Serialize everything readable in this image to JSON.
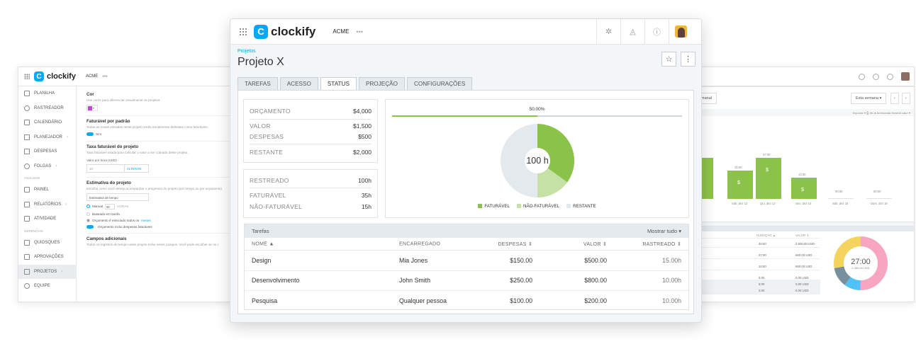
{
  "left_window": {
    "logo": "clockify",
    "workspace": "ACME",
    "ellipsis": "•••",
    "sidebar": [
      {
        "label": "PLANILHA"
      },
      {
        "label": "RASTREADOR"
      },
      {
        "label": "CALENDÁRIO"
      },
      {
        "label": "PLANEJADOR",
        "chevron": "›"
      },
      {
        "label": "DESPESAS"
      },
      {
        "label": "FOLGAS",
        "chevron": "›"
      }
    ],
    "section_analyze": "ANALISAR",
    "sidebar2": [
      {
        "label": "PAINEL"
      },
      {
        "label": "RELATÓRIOS",
        "chevron": "›"
      },
      {
        "label": "ATIVIDADE"
      }
    ],
    "section_manage": "GERENCIAR",
    "sidebar3": [
      {
        "label": "QUIOSQUES"
      },
      {
        "label": "APROVAÇÕES"
      },
      {
        "label": "PROJETOS",
        "chevron": "›"
      },
      {
        "label": "EQUIPE"
      }
    ],
    "color_title": "Cor",
    "color_desc": "Use cores para diferenciar visualmente os projetos.",
    "color_caret": "▾",
    "billable_title": "Faturável por padrão",
    "billable_desc": "Todas as novas entradas neste projeto serão inicialmente definidas como faturáveis.",
    "billable_toggle": "Sim",
    "rate_title": "Taxa faturável do projeto",
    "rate_desc": "Taxa faturável usada para calcular o valor a ser cobrado deste projeto.",
    "rate_label": "Valor por hora (USD)",
    "rate_value": "10",
    "rate_button": "ALTERAR",
    "estimate_title": "Estimativa do projeto",
    "estimate_desc": "Escolha como você deseja acompanhar o progresso do projeto (por tempo ou por orçamento)",
    "estimate_select": "Estimativa de tempo",
    "estimate_manual": "Manual",
    "estimate_value": "50",
    "estimate_unit": "HORAS",
    "estimate_task": "Baseado em tarefa",
    "reset_text": "Orçamento é reiniciado todos os",
    "reset_link": "meses",
    "expense_toggle": "Orçamento inclui despesas faturáveis",
    "custom_title": "Campos adicionais",
    "custom_desc": "Todos os registros de tempo neste projeto terão esses campos. Você pode escolher se os c"
  },
  "right_window": {
    "button_left": "manal",
    "range": "Esta semana ▾",
    "prev": "‹",
    "next": "›",
    "toolbar_text": "Exportar ▾   ⎙   ⋘   ●  Arredondar   Mostrar valor ▾",
    "bars": [
      {
        "top_label": "",
        "dollar": "",
        "day": ""
      },
      {
        "top_label": "15:00",
        "dollar": "$",
        "day": "Sáb, dez 12"
      },
      {
        "top_label": "27:00",
        "dollar": "$",
        "day": "Qui, dez 13"
      },
      {
        "top_label": "13:30",
        "dollar": "$",
        "day": "Sex, dez 14"
      },
      {
        "top_label": "00:00",
        "dollar": "",
        "day": "Sáb, dez 15"
      },
      {
        "top_label": "00:00",
        "dollar": "",
        "day": "Dom, dez 16"
      }
    ],
    "table_head": {
      "dur": "DURAÇÃO ▲",
      "val": "VALOR ⇕"
    },
    "rows": [
      {
        "dur": "40:00",
        "val": "2.600,00 USD"
      },
      {
        "dur": "27:00",
        "val": "660,00 USD"
      },
      {
        "dur": "10:00",
        "val": "650,00 USD"
      },
      {
        "dur": "5:00",
        "val": "0,00 USD"
      },
      {
        "dur": "5:00",
        "val": "0,00 USD"
      },
      {
        "dur": "2:00",
        "val": "0,00 USD"
      }
    ],
    "donut_time": "27:00",
    "donut_value": "2.380,00 USD",
    "colors": {
      "yellow": "#f4d35e",
      "pink": "#f8a5c2",
      "gray": "#78909c",
      "blue": "#4fc3f7"
    }
  },
  "main": {
    "logo": "clockify",
    "workspace": "ACME",
    "ellipsis": "•••",
    "breadcrumb": "Projetos",
    "title": "Projeto X",
    "star": "☆",
    "kebab": "⋮",
    "tabs": [
      "TAREFAS",
      "ACESSO",
      "STATUS",
      "PROJEÇÃO",
      "CONFIGURAÇÕES"
    ],
    "active_tab": "STATUS",
    "budget": {
      "budget_label": "ORÇAMENTO",
      "budget_value": "$4,000",
      "amount_label": "VALOR",
      "amount_value": "$1,500",
      "expenses_label": "DESPESAS",
      "expenses_value": "$500",
      "remaining_label": "RESTANTE",
      "remaining_value": "$2,000"
    },
    "time": {
      "tracked_label": "RESTREADO",
      "tracked_value": "100h",
      "billable_label": "FATURÁVEL",
      "billable_value": "35h",
      "nonbillable_label": "NÃO-FATURÁVEL",
      "nonbillable_value": "15h"
    },
    "progress": {
      "label": "50.00%",
      "value": 0.5
    },
    "donut": {
      "center": "100 h",
      "slices": [
        {
          "name": "FATURÁVEL",
          "hours": 35,
          "color": "#8bc34a"
        },
        {
          "name": "NÃO-FATURÁVEL",
          "hours": 15,
          "color": "#c5e1a5"
        },
        {
          "name": "RESTANTE",
          "hours": 50,
          "color": "#e4e9ed"
        }
      ]
    },
    "tasks": {
      "title": "Tarefas",
      "show_all": "Mostrar tudo ▾",
      "columns": {
        "name": "NOME ▲",
        "assignee": "ENCARREGADO",
        "expenses": "DESPESAS ⇕",
        "amount": "VALOR ⇕",
        "tracked": "RASTREADO ⇕"
      },
      "rows": [
        {
          "name": "Design",
          "assignee": "Mia Jones",
          "expenses": "$150.00",
          "amount": "$500.00",
          "tracked": "15.00h"
        },
        {
          "name": "Desenvolvimento",
          "assignee": "John Smith",
          "expenses": "$250.00",
          "amount": "$800.00",
          "tracked": "10.00h"
        },
        {
          "name": "Pesquisa",
          "assignee": "Qualquer pessoa",
          "expenses": "$100.00",
          "amount": "$200.00",
          "tracked": "10.00h"
        }
      ]
    }
  }
}
